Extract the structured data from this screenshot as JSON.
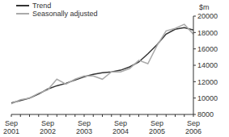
{
  "chart_data": {
    "type": "line",
    "y_label": "$m",
    "categories": [
      "Sep 2001",
      null,
      null,
      null,
      "Sep 2002",
      null,
      null,
      null,
      "Sep 2003",
      null,
      null,
      null,
      "Sep 2004",
      null,
      null,
      null,
      "Sep 2005",
      null,
      null,
      null,
      "Sep 2006"
    ],
    "series": [
      {
        "name": "Trend",
        "color": "#333333",
        "values": [
          9400,
          9700,
          10000,
          10500,
          11100,
          11500,
          11800,
          12200,
          12600,
          12900,
          13100,
          13200,
          13400,
          13800,
          14400,
          15400,
          16500,
          17800,
          18400,
          18600,
          18300
        ]
      },
      {
        "name": "Seasonally adjusted",
        "color": "#aaaaaa",
        "values": [
          9300,
          9800,
          10000,
          10600,
          11000,
          12300,
          11700,
          12300,
          12700,
          12700,
          12300,
          13200,
          13200,
          13600,
          14600,
          14200,
          16400,
          18200,
          18500,
          19000,
          17800
        ]
      }
    ],
    "ylim": [
      8000,
      20000
    ],
    "yticks": [
      8000,
      10000,
      12000,
      14000,
      16000,
      18000,
      20000
    ],
    "grid": false,
    "legend": "upper left"
  }
}
